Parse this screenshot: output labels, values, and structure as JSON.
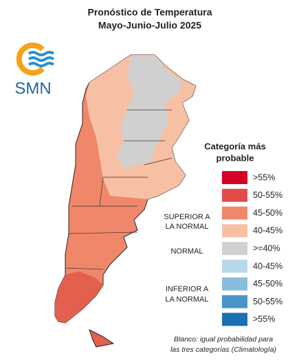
{
  "header": {
    "title": "Pronóstico de Temperatura",
    "subtitle": "Mayo-Junio-Julio 2025"
  },
  "logo": {
    "text": "SMN"
  },
  "legend": {
    "title": [
      "Categoría más",
      "probable"
    ],
    "items": [
      {
        "label": ">55%",
        "color": "#d40028"
      },
      {
        "label": "50-55%",
        "color": "#e34a4a"
      },
      {
        "label": "45-50%",
        "color": "#f0876a"
      },
      {
        "label": "40-45%",
        "color": "#f7c0a4"
      },
      {
        "label": ">=40%",
        "color": "#d0d0d0"
      },
      {
        "label": "40-45%",
        "color": "#b8d8ec"
      },
      {
        "label": "45-50%",
        "color": "#88bcdc"
      },
      {
        "label": "50-55%",
        "color": "#4a95c8"
      },
      {
        "label": ">55%",
        "color": "#1a6fb5"
      }
    ]
  },
  "groups": [
    [
      "SUPERIOR A",
      "LA NORMAL"
    ],
    [
      "NORMAL"
    ],
    [
      "INFERIOR A",
      "LA NORMAL"
    ]
  ],
  "footer": [
    "Blanco: igual probabilidad para",
    "las tres categorías (Climatología)"
  ]
}
